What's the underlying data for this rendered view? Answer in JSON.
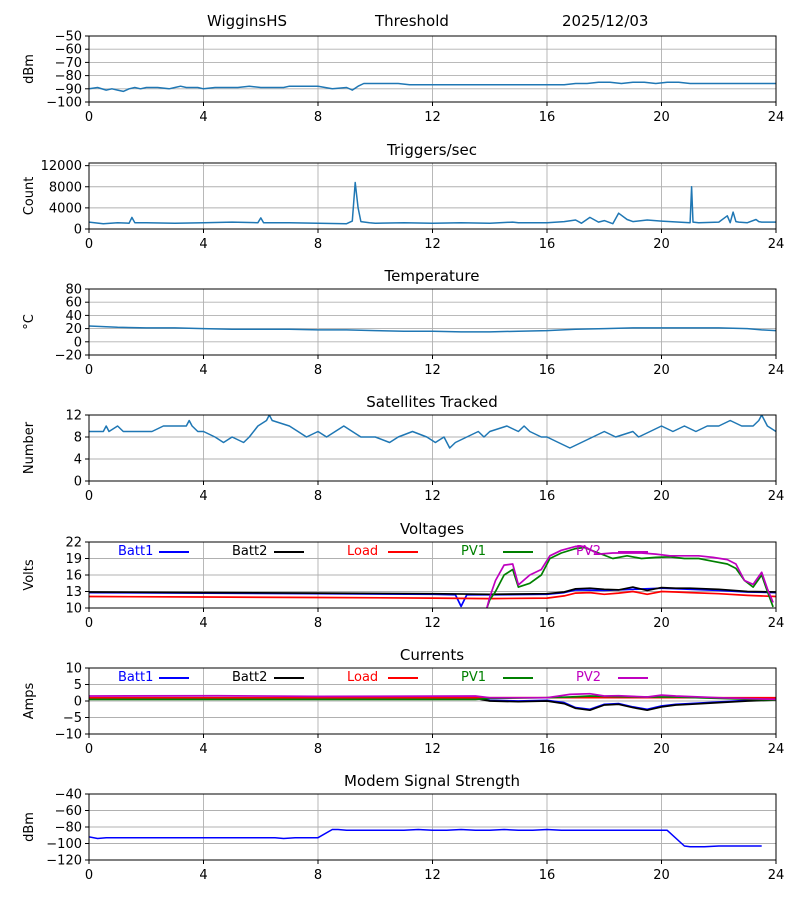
{
  "header": {
    "station": "WigginsHS",
    "label": "Threshold",
    "date": "2025/12/03"
  },
  "x_ticks": [
    "0",
    "4",
    "8",
    "12",
    "16",
    "20",
    "24"
  ],
  "colors": {
    "default": "#1f77b4",
    "batt1": "#0000ff",
    "batt2": "#000000",
    "load": "#ff0000",
    "pv1": "#008000",
    "pv2": "#bf00bf",
    "modem": "#0000ff"
  },
  "chart_data": [
    {
      "type": "line",
      "title": "",
      "ylabel": "dBm",
      "xlim": [
        0,
        24
      ],
      "ylim": [
        -100,
        -50
      ],
      "yticks": [
        -50,
        -60,
        -70,
        -80,
        -90,
        -100
      ],
      "yticklabels": [
        "−50",
        "−60",
        "−70",
        "−80",
        "−90",
        "−100"
      ],
      "series": [
        {
          "name": "Threshold",
          "color": "#1f77b4",
          "x": [
            0,
            0.3,
            0.6,
            0.8,
            1.0,
            1.2,
            1.4,
            1.6,
            1.8,
            2.0,
            2.4,
            2.8,
            3.0,
            3.2,
            3.4,
            3.6,
            3.8,
            4.0,
            4.4,
            4.8,
            5.2,
            5.6,
            6.0,
            6.4,
            6.8,
            7.0,
            7.5,
            8.0,
            8.5,
            9.0,
            9.2,
            9.4,
            9.6,
            9.8,
            10.2,
            10.8,
            11.2,
            11.6,
            12.0,
            13,
            14,
            15,
            16,
            16.6,
            17,
            17.4,
            17.8,
            18.2,
            18.6,
            19.0,
            19.4,
            19.8,
            20.2,
            20.6,
            21,
            22,
            23,
            24
          ],
          "y": [
            -90,
            -89,
            -91,
            -90,
            -91,
            -92,
            -90,
            -89,
            -90,
            -89,
            -89,
            -90,
            -89,
            -88,
            -89,
            -89,
            -89,
            -90,
            -89,
            -89,
            -89,
            -88,
            -89,
            -89,
            -89,
            -88,
            -88,
            -88,
            -90,
            -89,
            -91,
            -88,
            -86,
            -86,
            -86,
            -86,
            -87,
            -87,
            -87,
            -87,
            -87,
            -87,
            -87,
            -87,
            -86,
            -86,
            -85,
            -85,
            -86,
            -85,
            -85,
            -86,
            -85,
            -85,
            -86,
            -86,
            -86,
            -86
          ]
        }
      ]
    },
    {
      "type": "line",
      "title": "Triggers/sec",
      "ylabel": "Count",
      "xlim": [
        0,
        24
      ],
      "ylim": [
        0,
        12500
      ],
      "yticks": [
        0,
        4000,
        8000,
        12000
      ],
      "yticklabels": [
        "0",
        "4000",
        "8000",
        "12000"
      ],
      "series": [
        {
          "name": "Triggers",
          "color": "#1f77b4",
          "x": [
            0,
            0.5,
            1.0,
            1.4,
            1.5,
            1.6,
            2.0,
            3.0,
            4.0,
            5.0,
            5.9,
            6.0,
            6.1,
            7.0,
            8.0,
            9.0,
            9.2,
            9.3,
            9.4,
            9.5,
            9.8,
            10,
            11,
            12,
            13,
            14,
            14.8,
            15,
            16,
            16.6,
            17,
            17.2,
            17.5,
            17.8,
            18.0,
            18.3,
            18.5,
            18.8,
            19,
            19.5,
            20,
            21,
            21.05,
            21.1,
            21.3,
            22,
            22.3,
            22.4,
            22.5,
            22.6,
            22.7,
            23,
            23.3,
            23.4,
            23.5,
            24
          ],
          "y": [
            1300,
            1000,
            1200,
            1100,
            2200,
            1200,
            1200,
            1100,
            1200,
            1300,
            1200,
            2100,
            1200,
            1200,
            1100,
            1000,
            1500,
            8800,
            4000,
            1400,
            1200,
            1100,
            1200,
            1100,
            1200,
            1100,
            1300,
            1200,
            1200,
            1400,
            1700,
            1100,
            2200,
            1300,
            1600,
            1000,
            3000,
            1800,
            1400,
            1700,
            1500,
            1200,
            8000,
            1300,
            1200,
            1300,
            2500,
            1200,
            3200,
            1400,
            1300,
            1200,
            1800,
            1400,
            1300,
            1300
          ]
        }
      ]
    },
    {
      "type": "line",
      "title": "Temperature",
      "ylabel": "°C",
      "xlim": [
        0,
        24
      ],
      "ylim": [
        -20,
        80
      ],
      "yticks": [
        -20,
        0,
        20,
        40,
        60,
        80
      ],
      "yticklabels": [
        "−20",
        "0",
        "20",
        "40",
        "60",
        "80"
      ],
      "series": [
        {
          "name": "Temperature",
          "color": "#1f77b4",
          "x": [
            0,
            0.5,
            1,
            2,
            3,
            4,
            5,
            6,
            7,
            8,
            9,
            10,
            11,
            12,
            13,
            14,
            15,
            16,
            17,
            18,
            19,
            20,
            21,
            22,
            23,
            23.5,
            24
          ],
          "y": [
            24,
            23,
            22,
            21,
            21,
            20,
            19,
            19,
            19,
            18,
            18,
            17,
            16,
            16,
            15,
            15,
            16,
            17,
            19,
            20,
            21,
            21,
            21,
            21,
            20,
            18,
            17
          ]
        }
      ]
    },
    {
      "type": "line",
      "title": "Satellites Tracked",
      "ylabel": "Number",
      "xlim": [
        0,
        24
      ],
      "ylim": [
        0,
        12
      ],
      "yticks": [
        0,
        4,
        8,
        12
      ],
      "yticklabels": [
        "0",
        "4",
        "8",
        "12"
      ],
      "series": [
        {
          "name": "Satellites",
          "color": "#1f77b4",
          "x": [
            0,
            0.5,
            0.6,
            0.7,
            1.0,
            1.2,
            2.0,
            2.2,
            2.6,
            3.4,
            3.5,
            3.6,
            3.8,
            4.0,
            4.4,
            4.7,
            5.0,
            5.4,
            5.6,
            5.9,
            6.2,
            6.3,
            6.4,
            7.0,
            7.3,
            7.6,
            8.0,
            8.3,
            8.6,
            8.9,
            9.2,
            9.5,
            10,
            10.5,
            10.8,
            11.3,
            11.8,
            12.1,
            12.4,
            12.6,
            12.8,
            13.2,
            13.6,
            13.8,
            14.0,
            14.6,
            15.0,
            15.2,
            15.4,
            15.8,
            16.0,
            16.4,
            16.8,
            17.2,
            17.6,
            18.0,
            18.4,
            19.0,
            19.2,
            19.6,
            20.0,
            20.4,
            20.8,
            21.2,
            21.6,
            22.0,
            22.4,
            22.8,
            23.2,
            23.4,
            23.5,
            23.7,
            24
          ],
          "y": [
            9,
            9,
            10,
            9,
            10,
            9,
            9,
            9,
            10,
            10,
            11,
            10,
            9,
            9,
            8,
            7,
            8,
            7,
            8,
            10,
            11,
            12,
            11,
            10,
            9,
            8,
            9,
            8,
            9,
            10,
            9,
            8,
            8,
            7,
            8,
            9,
            8,
            7,
            8,
            6,
            7,
            8,
            9,
            8,
            9,
            10,
            9,
            10,
            9,
            8,
            8,
            7,
            6,
            7,
            8,
            9,
            8,
            9,
            8,
            9,
            10,
            9,
            10,
            9,
            10,
            10,
            11,
            10,
            10,
            11,
            12,
            10,
            9
          ]
        }
      ]
    },
    {
      "type": "line",
      "title": "Voltages",
      "ylabel": "Volts",
      "xlim": [
        0,
        24
      ],
      "ylim": [
        10,
        22
      ],
      "yticks": [
        10,
        13,
        16,
        19,
        22
      ],
      "yticklabels": [
        "10",
        "13",
        "16",
        "19",
        "22"
      ],
      "series": [
        {
          "name": "Batt1",
          "color": "#0000ff",
          "x": [
            0,
            4,
            8,
            12,
            12.8,
            13.0,
            13.2,
            13.6,
            14,
            16,
            16.6,
            17,
            18,
            19,
            20,
            21,
            22,
            23,
            24
          ],
          "y": [
            12.8,
            12.7,
            12.6,
            12.5,
            12.4,
            10.3,
            12.4,
            12.4,
            12.4,
            12.5,
            12.8,
            13.3,
            13.2,
            13.4,
            13.6,
            13.4,
            13.2,
            12.9,
            12.8
          ]
        },
        {
          "name": "Batt2",
          "color": "#000000",
          "x": [
            0,
            4,
            8,
            12,
            14,
            16,
            16.6,
            17,
            17.5,
            18,
            18.5,
            19,
            19.5,
            20,
            20.5,
            21,
            22,
            23,
            24
          ],
          "y": [
            12.9,
            12.8,
            12.7,
            12.6,
            12.5,
            12.6,
            12.9,
            13.5,
            13.6,
            13.4,
            13.3,
            13.8,
            13.2,
            13.7,
            13.6,
            13.6,
            13.4,
            13.0,
            12.9
          ]
        },
        {
          "name": "Load",
          "color": "#ff0000",
          "x": [
            0,
            4,
            8,
            12,
            14,
            16,
            16.6,
            17,
            17.5,
            18,
            18.5,
            19,
            19.5,
            20,
            20.5,
            21,
            22,
            23,
            24
          ],
          "y": [
            12.1,
            12.0,
            11.9,
            11.8,
            11.7,
            11.8,
            12.2,
            12.7,
            12.8,
            12.5,
            12.7,
            13.0,
            12.5,
            13.0,
            12.9,
            12.8,
            12.6,
            12.3,
            12.1
          ]
        },
        {
          "name": "PV1",
          "color": "#008000",
          "x": [
            13.9,
            14.0,
            14.2,
            14.5,
            14.8,
            15.0,
            15.4,
            15.8,
            16.1,
            16.5,
            17.0,
            17.3,
            17.8,
            18.3,
            18.8,
            19.3,
            19.8,
            20.3,
            20.8,
            21.3,
            21.8,
            22.3,
            22.6,
            22.9,
            23.2,
            23.5,
            23.7,
            23.9
          ],
          "y": [
            10.0,
            11.5,
            13.0,
            16.0,
            17.0,
            13.8,
            14.5,
            16.0,
            19.0,
            20.0,
            20.8,
            21.0,
            20.0,
            19.0,
            19.5,
            19.0,
            19.2,
            19.3,
            19.0,
            19.0,
            18.5,
            18.0,
            17.2,
            15.0,
            13.8,
            16.0,
            13.0,
            10.2
          ]
        },
        {
          "name": "PV2",
          "color": "#bf00bf",
          "x": [
            13.9,
            14.0,
            14.2,
            14.5,
            14.8,
            15.0,
            15.4,
            15.8,
            16.1,
            16.5,
            17.0,
            17.3,
            17.8,
            18.3,
            18.8,
            19.3,
            19.8,
            20.3,
            20.8,
            21.3,
            21.8,
            22.3,
            22.6,
            22.9,
            23.2,
            23.5,
            23.7,
            23.9
          ],
          "y": [
            10.0,
            12.0,
            15.0,
            17.8,
            18.0,
            14.2,
            16.0,
            17.0,
            19.5,
            20.5,
            21.2,
            21.2,
            19.8,
            20.0,
            20.0,
            20.0,
            19.8,
            19.5,
            19.5,
            19.5,
            19.2,
            18.8,
            18.0,
            15.0,
            14.3,
            16.5,
            13.5,
            11.0
          ]
        }
      ]
    },
    {
      "type": "line",
      "title": "Currents",
      "ylabel": "Amps",
      "xlim": [
        0,
        24
      ],
      "ylim": [
        -10,
        10
      ],
      "yticks": [
        -10,
        -5,
        0,
        5,
        10
      ],
      "yticklabels": [
        "−10",
        "−5",
        "0",
        "5",
        "10"
      ],
      "series": [
        {
          "name": "Batt1",
          "color": "#0000ff",
          "x": [
            0,
            13.5,
            14,
            15,
            16,
            16.6,
            17,
            17.5,
            18,
            18.5,
            19,
            19.5,
            20,
            20.5,
            21,
            22,
            23,
            24
          ],
          "y": [
            1.0,
            1.0,
            0.2,
            0.0,
            0.2,
            -0.5,
            -2.0,
            -2.5,
            -1.0,
            -0.8,
            -1.8,
            -2.5,
            -1.5,
            -1.0,
            -0.8,
            -0.3,
            0.2,
            0.5
          ]
        },
        {
          "name": "Batt2",
          "color": "#000000",
          "x": [
            0,
            13.5,
            14,
            15,
            16,
            16.6,
            17,
            17.5,
            18,
            18.5,
            19,
            19.5,
            20,
            20.5,
            21,
            22,
            23,
            24
          ],
          "y": [
            0.8,
            0.8,
            0.0,
            -0.2,
            0.0,
            -0.8,
            -2.2,
            -2.8,
            -1.2,
            -1.0,
            -2.0,
            -2.8,
            -1.8,
            -1.2,
            -1.0,
            -0.5,
            0.0,
            0.3
          ]
        },
        {
          "name": "Load",
          "color": "#ff0000",
          "x": [
            0,
            24
          ],
          "y": [
            1.0,
            1.0
          ]
        },
        {
          "name": "PV1",
          "color": "#008000",
          "x": [
            0,
            13.5,
            14,
            16,
            16.8,
            17.5,
            18.5,
            19.5,
            20.5,
            22,
            24
          ],
          "y": [
            0.5,
            0.5,
            0.8,
            1.0,
            1.2,
            1.5,
            1.3,
            1.2,
            1.2,
            0.8,
            0.3
          ]
        },
        {
          "name": "PV2",
          "color": "#bf00bf",
          "x": [
            0,
            4.5,
            8,
            13.5,
            14,
            16,
            16.8,
            17.5,
            18,
            18.5,
            19.5,
            20,
            20.5,
            22,
            24
          ],
          "y": [
            1.5,
            1.6,
            1.4,
            1.5,
            1.0,
            1.0,
            2.0,
            2.2,
            1.5,
            1.6,
            1.2,
            1.8,
            1.5,
            1.0,
            0.5
          ]
        }
      ]
    },
    {
      "type": "line",
      "title": "Modem Signal Strength",
      "ylabel": "dBm",
      "xlim": [
        0,
        24
      ],
      "ylim": [
        -120,
        -40
      ],
      "yticks": [
        -40,
        -60,
        -80,
        -100,
        -120
      ],
      "yticklabels": [
        "−40",
        "−60",
        "−80",
        "−100",
        "−120"
      ],
      "series": [
        {
          "name": "Modem",
          "color": "#0000ff",
          "x": [
            0,
            0.3,
            0.6,
            2,
            4,
            6,
            6.5,
            6.8,
            7.2,
            8.0,
            8.5,
            8.7,
            9.0,
            9.5,
            10,
            11,
            11.5,
            12,
            12.5,
            13,
            13.5,
            14,
            14.5,
            15,
            15.5,
            16,
            16.5,
            17,
            17.5,
            18,
            18.5,
            19,
            19.5,
            20.0,
            20.2,
            20.8,
            21.0,
            21.5,
            22,
            23,
            23.5
          ],
          "y": [
            -92,
            -94,
            -93,
            -93,
            -93,
            -93,
            -93,
            -94,
            -93,
            -93,
            -83,
            -83,
            -84,
            -84,
            -84,
            -84,
            -83,
            -84,
            -84,
            -83,
            -84,
            -84,
            -83,
            -84,
            -84,
            -83,
            -84,
            -84,
            -84,
            -84,
            -84,
            -84,
            -84,
            -84,
            -84,
            -103,
            -104,
            -104,
            -103,
            -103,
            -103
          ]
        }
      ]
    }
  ]
}
